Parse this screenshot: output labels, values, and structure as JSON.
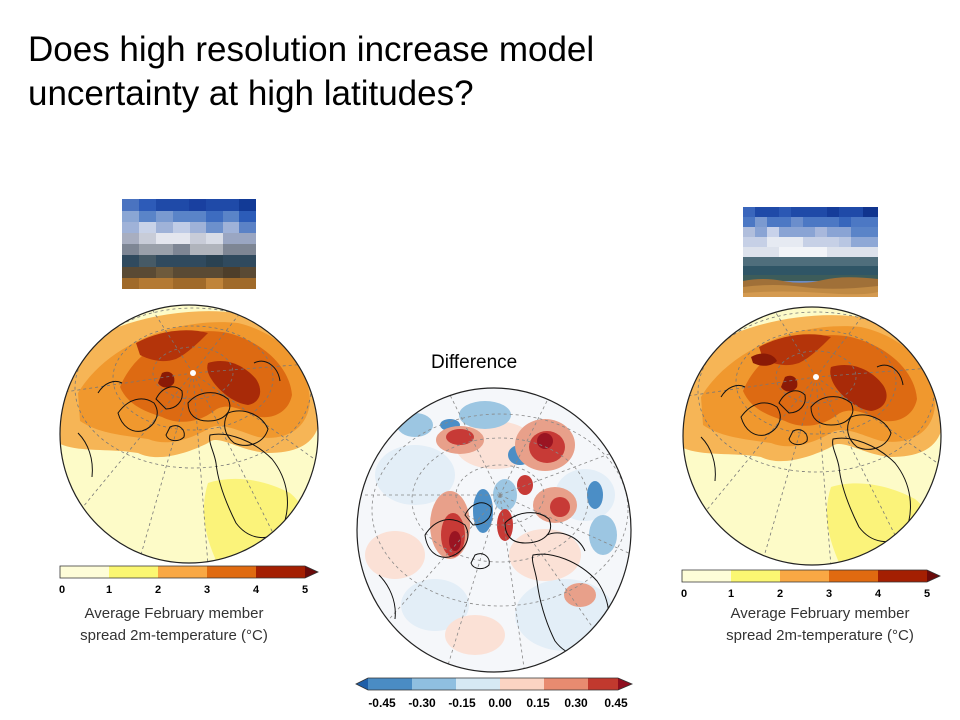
{
  "slide": {
    "title_line1": "Does high resolution increase model",
    "title_line2": "uncertainty at high latitudes?",
    "difference_label": "Difference"
  },
  "left_panel": {
    "caption_line1": "Average February member",
    "caption_line2": "spread 2m-temperature (°C)",
    "colorbar": {
      "ticks": [
        "0",
        "1",
        "2",
        "3",
        "4",
        "5"
      ],
      "colors": [
        "#fefdd8",
        "#fbf772",
        "#f9a844",
        "#e06a10",
        "#a41f02",
        "#6a0a0a"
      ]
    }
  },
  "right_panel": {
    "caption_line1": "Average February member",
    "caption_line2": "spread 2m-temperature (°C)",
    "colorbar": {
      "ticks": [
        "0",
        "1",
        "2",
        "3",
        "4",
        "5"
      ],
      "colors": [
        "#fefdd8",
        "#fbf772",
        "#f9a844",
        "#e06a10",
        "#a41f02",
        "#6a0a0a"
      ]
    }
  },
  "center_panel": {
    "colorbar": {
      "ticks": [
        "-0.45",
        "-0.30",
        "-0.15",
        "0.00",
        "0.15",
        "0.30",
        "0.45"
      ],
      "colors": [
        "#1f5fa8",
        "#4a8cc4",
        "#8fbfe0",
        "#d6e9f4",
        "#fbd4c3",
        "#e88b70",
        "#c1392e",
        "#8e0d1e"
      ]
    }
  }
}
